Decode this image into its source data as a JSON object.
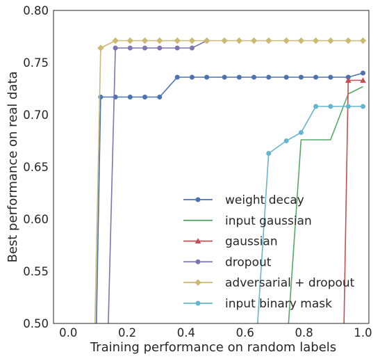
{
  "chart_data": {
    "type": "line",
    "title": "",
    "xlabel": "Training performance on random labels",
    "ylabel": "Best performance on real data",
    "xlim": [
      -0.05,
      1.02
    ],
    "ylim": [
      0.5,
      0.8
    ],
    "xticks": [
      "0.0",
      "0.2",
      "0.4",
      "0.6",
      "0.8",
      "1.0"
    ],
    "yticks": [
      "0.50",
      "0.55",
      "0.60",
      "0.65",
      "0.70",
      "0.75",
      "0.80"
    ],
    "grid": false,
    "legend_position": "lower-right",
    "series": [
      {
        "name": "weight decay",
        "color": "#4c72b0",
        "marker": "circle",
        "points": [
          [
            0.095,
            0.49
          ],
          [
            0.11,
            0.717
          ],
          [
            0.16,
            0.717
          ],
          [
            0.21,
            0.717
          ],
          [
            0.26,
            0.717
          ],
          [
            0.31,
            0.717
          ],
          [
            0.37,
            0.736
          ],
          [
            0.42,
            0.736
          ],
          [
            0.47,
            0.736
          ],
          [
            0.53,
            0.736
          ],
          [
            0.58,
            0.736
          ],
          [
            0.63,
            0.736
          ],
          [
            0.68,
            0.736
          ],
          [
            0.74,
            0.736
          ],
          [
            0.79,
            0.736
          ],
          [
            0.84,
            0.736
          ],
          [
            0.89,
            0.736
          ],
          [
            0.95,
            0.736
          ],
          [
            1.0,
            0.74
          ]
        ]
      },
      {
        "name": "input gaussian",
        "color": "#55a868",
        "marker": "none",
        "points": [
          [
            0.745,
            0.49
          ],
          [
            0.79,
            0.676
          ],
          [
            0.89,
            0.676
          ],
          [
            0.95,
            0.72
          ],
          [
            1.0,
            0.727
          ]
        ]
      },
      {
        "name": "gaussian",
        "color": "#c44e52",
        "marker": "triangle",
        "points": [
          [
            0.935,
            0.49
          ],
          [
            0.95,
            0.733
          ],
          [
            1.0,
            0.733
          ]
        ]
      },
      {
        "name": "dropout",
        "color": "#8172b2",
        "marker": "circle",
        "points": [
          [
            0.135,
            0.49
          ],
          [
            0.16,
            0.764
          ],
          [
            0.21,
            0.764
          ],
          [
            0.26,
            0.764
          ],
          [
            0.31,
            0.764
          ],
          [
            0.37,
            0.764
          ],
          [
            0.42,
            0.764
          ],
          [
            0.47,
            0.771
          ]
        ]
      },
      {
        "name": "adversarial + dropout",
        "color": "#ccb974",
        "marker": "diamond",
        "points": [
          [
            0.09,
            0.49
          ],
          [
            0.11,
            0.764
          ],
          [
            0.16,
            0.771
          ],
          [
            0.21,
            0.771
          ],
          [
            0.26,
            0.771
          ],
          [
            0.31,
            0.771
          ],
          [
            0.37,
            0.771
          ],
          [
            0.42,
            0.771
          ],
          [
            0.47,
            0.771
          ],
          [
            0.53,
            0.771
          ],
          [
            0.58,
            0.771
          ],
          [
            0.63,
            0.771
          ],
          [
            0.68,
            0.771
          ],
          [
            0.74,
            0.771
          ],
          [
            0.79,
            0.771
          ],
          [
            0.84,
            0.771
          ],
          [
            0.89,
            0.771
          ],
          [
            0.95,
            0.771
          ],
          [
            1.0,
            0.771
          ]
        ]
      },
      {
        "name": "input binary mask",
        "color": "#64b5cd",
        "marker": "circle",
        "points": [
          [
            0.64,
            0.49
          ],
          [
            0.68,
            0.663
          ],
          [
            0.74,
            0.675
          ],
          [
            0.79,
            0.683
          ],
          [
            0.84,
            0.708
          ],
          [
            0.89,
            0.708
          ],
          [
            0.95,
            0.708
          ],
          [
            1.0,
            0.708
          ]
        ]
      }
    ]
  }
}
